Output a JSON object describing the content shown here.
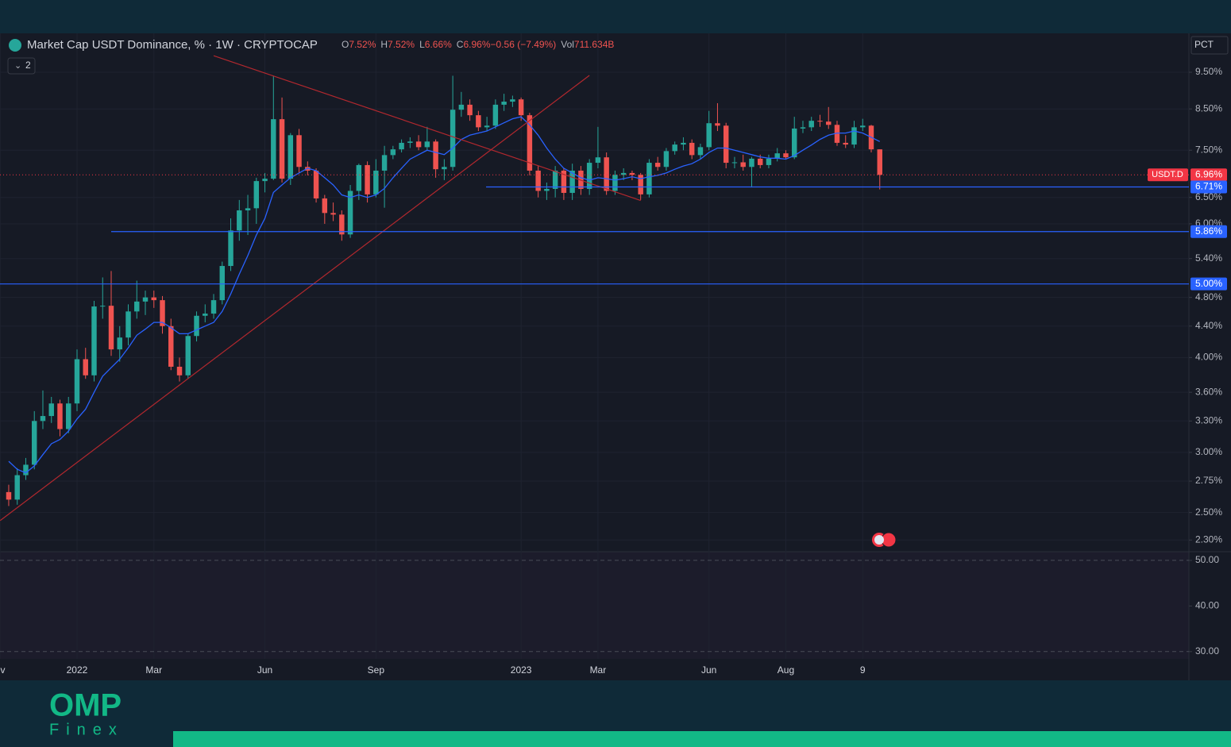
{
  "header": {
    "title": "Market Cap USDT Dominance, % · 1W · CRYPTOCAP",
    "legend": [
      {
        "key": "O",
        "text": "7.52%"
      },
      {
        "key": "H",
        "text": "7.52%"
      },
      {
        "key": "L",
        "text": "6.66%"
      },
      {
        "key": "C",
        "text": "6.96%"
      },
      {
        "key": "",
        "text": "−0.56 (−7.49%)"
      },
      {
        "key": "Vol",
        "text": "711.634B"
      }
    ],
    "collapse": "2",
    "scale_button": "PCT"
  },
  "logo": {
    "name": "OMP",
    "sub": "Finex"
  },
  "chart_data": [
    {
      "type": "candlestick",
      "log_scale": true,
      "grid": true,
      "up_color": "#26a69a",
      "down_color": "#ef5350",
      "xlim": [
        -1.02,
        138.2
      ],
      "xticks": [
        {
          "value": -1,
          "label": "ov"
        },
        {
          "value": 8,
          "label": "2022"
        },
        {
          "value": 17,
          "label": "Mar"
        },
        {
          "value": 30,
          "label": "Jun"
        },
        {
          "value": 43,
          "label": "Sep"
        },
        {
          "value": 60,
          "label": "2023"
        },
        {
          "value": 69,
          "label": "Mar"
        },
        {
          "value": 82,
          "label": "Jun"
        },
        {
          "value": 91,
          "label": "Aug"
        },
        {
          "value": 100,
          "label": "9"
        }
      ],
      "ylim": [
        2.22,
        10.69
      ],
      "yticks": [
        {
          "value": 9.5,
          "label": "9.50%"
        },
        {
          "value": 8.5,
          "label": "8.50%"
        },
        {
          "value": 7.5,
          "label": "7.50%"
        },
        {
          "value": 6.5,
          "label": "6.50%"
        },
        {
          "value": 6,
          "label": "6.00%"
        },
        {
          "value": 5.4,
          "label": "5.40%"
        },
        {
          "value": 4.8,
          "label": "4.80%"
        },
        {
          "value": 4.4,
          "label": "4.40%"
        },
        {
          "value": 4,
          "label": "4.00%"
        },
        {
          "value": 3.6,
          "label": "3.60%"
        },
        {
          "value": 3.3,
          "label": "3.30%"
        },
        {
          "value": 3,
          "label": "3.00%"
        },
        {
          "value": 2.75,
          "label": "2.75%"
        },
        {
          "value": 2.5,
          "label": "2.50%"
        },
        {
          "value": 2.3,
          "label": "2.30%"
        }
      ],
      "candles": [
        [
          2.66,
          2.72,
          2.55,
          2.6
        ],
        [
          2.6,
          2.86,
          2.56,
          2.8
        ],
        [
          2.8,
          2.95,
          2.76,
          2.89
        ],
        [
          2.89,
          3.4,
          2.85,
          3.3
        ],
        [
          3.3,
          3.62,
          3.22,
          3.35
        ],
        [
          3.35,
          3.55,
          3.28,
          3.48
        ],
        [
          3.48,
          3.52,
          3.15,
          3.22
        ],
        [
          3.22,
          3.55,
          3.18,
          3.48
        ],
        [
          3.48,
          4.1,
          3.4,
          3.98
        ],
        [
          3.98,
          4.12,
          3.75,
          3.79
        ],
        [
          3.79,
          4.75,
          3.72,
          4.67
        ],
        [
          4.67,
          5.1,
          4.5,
          4.68
        ],
        [
          4.68,
          5.2,
          4.02,
          4.1
        ],
        [
          4.1,
          4.4,
          3.95,
          4.25
        ],
        [
          4.25,
          4.7,
          4.15,
          4.6
        ],
        [
          4.6,
          5.05,
          4.5,
          4.74
        ],
        [
          4.74,
          4.9,
          4.55,
          4.8
        ],
        [
          4.8,
          4.9,
          4.65,
          4.76
        ],
        [
          4.76,
          4.82,
          4.3,
          4.4
        ],
        [
          4.4,
          4.5,
          3.85,
          3.89
        ],
        [
          3.89,
          4,
          3.72,
          3.79
        ],
        [
          3.79,
          4.3,
          3.75,
          4.27
        ],
        [
          4.27,
          4.6,
          4.2,
          4.54
        ],
        [
          4.54,
          4.7,
          4.45,
          4.57
        ],
        [
          4.57,
          4.85,
          4.5,
          4.76
        ],
        [
          4.76,
          5.35,
          4.7,
          5.28
        ],
        [
          5.28,
          6.1,
          5.2,
          5.88
        ],
        [
          5.88,
          6.45,
          5.7,
          6.25
        ],
        [
          6.25,
          6.55,
          5.8,
          6.29
        ],
        [
          6.29,
          6.9,
          6,
          6.83
        ],
        [
          6.83,
          7,
          6.6,
          6.88
        ],
        [
          6.88,
          9.4,
          6.85,
          8.24
        ],
        [
          8.24,
          8.8,
          6.8,
          6.88
        ],
        [
          6.88,
          7.9,
          6.75,
          7.85
        ],
        [
          7.85,
          8,
          7,
          7.13
        ],
        [
          7.13,
          7.25,
          6.95,
          7.05
        ],
        [
          7.05,
          7.1,
          6.4,
          6.48
        ],
        [
          6.48,
          6.55,
          6,
          6.2
        ],
        [
          6.2,
          6.4,
          6.05,
          6.17
        ],
        [
          6.17,
          6.25,
          5.7,
          5.81
        ],
        [
          5.81,
          6.75,
          5.75,
          6.63
        ],
        [
          6.63,
          7.2,
          6.45,
          7.17
        ],
        [
          7.17,
          7.25,
          6.4,
          6.56
        ],
        [
          6.56,
          7.3,
          6.5,
          7.05
        ],
        [
          7.05,
          7.6,
          6.3,
          7.39
        ],
        [
          7.39,
          7.6,
          7.3,
          7.52
        ],
        [
          7.52,
          7.75,
          7.45,
          7.67
        ],
        [
          7.67,
          7.8,
          7.55,
          7.7
        ],
        [
          7.7,
          7.85,
          7.5,
          7.57
        ],
        [
          7.57,
          8.05,
          7.5,
          7.7
        ],
        [
          7.7,
          7.75,
          6.9,
          7.08
        ],
        [
          7.08,
          7.3,
          6.85,
          7.13
        ],
        [
          7.13,
          9.4,
          7.05,
          8.48
        ],
        [
          8.48,
          8.95,
          8.3,
          8.61
        ],
        [
          8.61,
          8.75,
          8.2,
          8.34
        ],
        [
          8.34,
          8.45,
          7.95,
          8.04
        ],
        [
          8.04,
          8.3,
          7.95,
          8.08
        ],
        [
          8.08,
          8.75,
          8,
          8.61
        ],
        [
          8.61,
          8.9,
          8.45,
          8.69
        ],
        [
          8.69,
          8.85,
          8.55,
          8.75
        ],
        [
          8.75,
          8.8,
          8.2,
          8.34
        ],
        [
          8.34,
          8.4,
          6.95,
          7.05
        ],
        [
          7.05,
          7.15,
          6.5,
          6.63
        ],
        [
          6.63,
          6.8,
          6.45,
          6.67
        ],
        [
          6.67,
          7.15,
          6.5,
          7.05
        ],
        [
          7.05,
          7.1,
          6.45,
          6.59
        ],
        [
          6.59,
          7.2,
          6.45,
          7.05
        ],
        [
          7.05,
          7.15,
          6.55,
          6.67
        ],
        [
          6.67,
          7.3,
          6.55,
          7.22
        ],
        [
          7.22,
          8.05,
          7.1,
          7.34
        ],
        [
          7.34,
          7.45,
          6.55,
          6.63
        ],
        [
          6.63,
          7.05,
          6.55,
          6.96
        ],
        [
          6.96,
          7.1,
          6.85,
          7
        ],
        [
          7,
          7.05,
          6.85,
          6.96
        ],
        [
          6.96,
          7,
          6.45,
          6.56
        ],
        [
          6.56,
          7.3,
          6.5,
          7.22
        ],
        [
          7.22,
          7.35,
          7.05,
          7.13
        ],
        [
          7.13,
          7.55,
          7.05,
          7.48
        ],
        [
          7.48,
          7.7,
          7.4,
          7.63
        ],
        [
          7.63,
          7.8,
          7.5,
          7.67
        ],
        [
          7.67,
          7.75,
          7.3,
          7.39
        ],
        [
          7.39,
          7.65,
          7.3,
          7.57
        ],
        [
          7.57,
          8.45,
          7.5,
          8.14
        ],
        [
          8.14,
          8.65,
          7.95,
          8.08
        ],
        [
          8.08,
          8.15,
          7.1,
          7.22
        ],
        [
          7.22,
          7.35,
          7.1,
          7.23
        ],
        [
          7.23,
          7.4,
          7.05,
          7.13
        ],
        [
          7.13,
          7.35,
          6.7,
          7.31
        ],
        [
          7.31,
          7.4,
          7.1,
          7.17
        ],
        [
          7.17,
          7.4,
          7.1,
          7.31
        ],
        [
          7.31,
          7.55,
          7.25,
          7.43
        ],
        [
          7.43,
          7.5,
          7.3,
          7.34
        ],
        [
          7.34,
          8.3,
          7.3,
          8.01
        ],
        [
          8.01,
          8.2,
          7.9,
          8.04
        ],
        [
          8.04,
          8.3,
          7.95,
          8.2
        ],
        [
          8.2,
          8.35,
          8.05,
          8.18
        ],
        [
          8.18,
          8.55,
          8,
          8.1
        ],
        [
          8.1,
          8.2,
          7.6,
          7.67
        ],
        [
          7.67,
          7.85,
          7.55,
          7.63
        ],
        [
          7.63,
          8.2,
          7.55,
          8.04
        ],
        [
          8.04,
          8.25,
          7.95,
          8.08
        ],
        [
          8.08,
          8.1,
          7.45,
          7.52
        ],
        [
          7.52,
          7.52,
          6.66,
          6.96
        ]
      ],
      "ma_color": "#2962ff",
      "ma_values": [
        2.92,
        2.85,
        2.82,
        2.88,
        2.98,
        3.08,
        3.12,
        3.2,
        3.32,
        3.42,
        3.6,
        3.78,
        3.88,
        3.98,
        4.12,
        4.28,
        4.36,
        4.45,
        4.45,
        4.38,
        4.3,
        4.3,
        4.35,
        4.4,
        4.45,
        4.6,
        4.85,
        5.15,
        5.45,
        5.8,
        6.1,
        6.6,
        6.75,
        6.9,
        7,
        7.1,
        7.05,
        6.9,
        6.75,
        6.55,
        6.5,
        6.55,
        6.5,
        6.55,
        6.68,
        6.9,
        7.1,
        7.3,
        7.4,
        7.5,
        7.45,
        7.4,
        7.55,
        7.75,
        7.85,
        7.9,
        7.95,
        8.05,
        8.15,
        8.25,
        8.3,
        8.1,
        7.85,
        7.55,
        7.3,
        7.1,
        7,
        6.9,
        6.85,
        6.9,
        6.88,
        6.85,
        6.88,
        6.92,
        6.88,
        6.92,
        6.95,
        7,
        7.08,
        7.15,
        7.2,
        7.3,
        7.45,
        7.55,
        7.55,
        7.5,
        7.45,
        7.4,
        7.35,
        7.32,
        7.32,
        7.3,
        7.38,
        7.5,
        7.62,
        7.75,
        7.85,
        7.9,
        7.9,
        7.95,
        7.9,
        7.8,
        7.7
      ],
      "trendlines": [
        {
          "color": "#b2282e",
          "points": [
            [
              -1,
              2.44
            ],
            [
              68,
              9.41
            ]
          ]
        },
        {
          "color": "#b2282e",
          "points": [
            [
              24,
              9.99
            ],
            [
              74,
              6.44
            ]
          ]
        }
      ],
      "price_line": {
        "value": 6.96,
        "label": "6.96%",
        "tag": "USDT.D",
        "color": "#f23645"
      },
      "hlines": [
        {
          "value": 6.71,
          "label": "6.71%",
          "from": 55.9,
          "color": "#2962ff"
        },
        {
          "value": 5.86,
          "label": "5.86%",
          "from": 12,
          "color": "#2962ff"
        },
        {
          "value": 5,
          "label": "5.00%",
          "from": -1.02,
          "color": "#2962ff"
        }
      ]
    },
    {
      "type": "pane",
      "ylim": [
        28.4,
        51.9
      ],
      "yticks": [
        {
          "value": 50,
          "label": "50.00"
        },
        {
          "value": 40,
          "label": "40.00"
        },
        {
          "value": 30,
          "label": "30.00"
        }
      ]
    }
  ]
}
